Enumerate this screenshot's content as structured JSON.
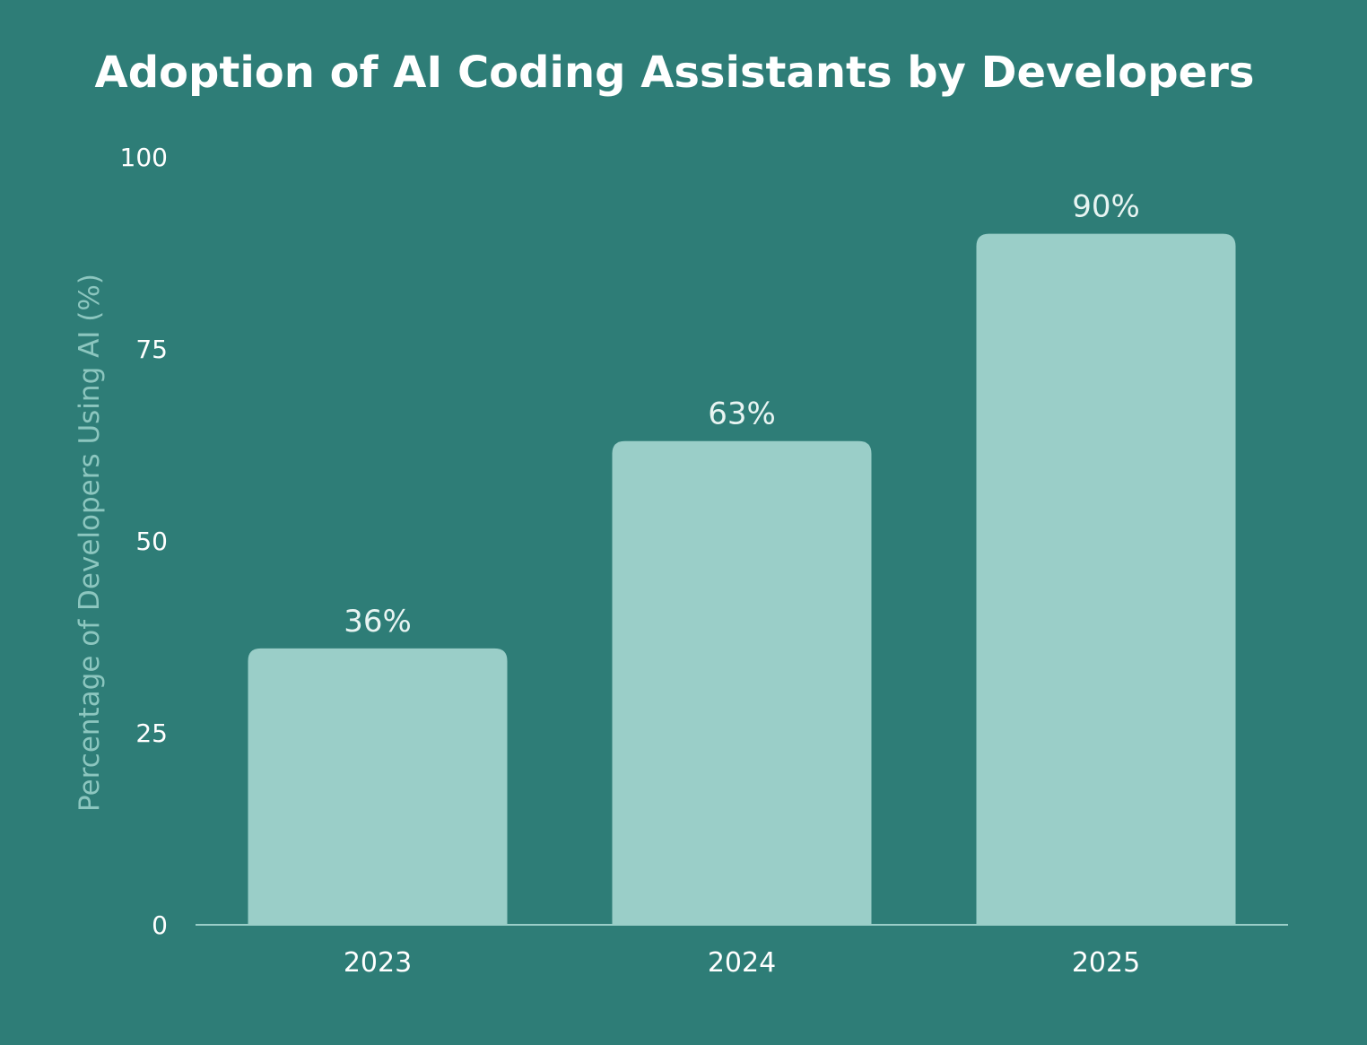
{
  "chart_data": {
    "type": "bar",
    "title": "Adoption of AI Coding Assistants by Developers",
    "xlabel": "",
    "ylabel": "Percentage of Developers Using AI (%)",
    "categories": [
      "2023",
      "2024",
      "2025"
    ],
    "values": [
      36,
      63,
      90
    ],
    "value_labels": [
      "36%",
      "63%",
      "90%"
    ],
    "ylim": [
      0,
      100
    ],
    "yticks": [
      0,
      25,
      50,
      75,
      100
    ],
    "ytick_labels": [
      "0",
      "25",
      "50",
      "75",
      "100"
    ],
    "grid": false,
    "legend": "none"
  },
  "colors": {
    "background": "#2e7d77",
    "bar": "#9acec8",
    "axis_line": "#9acec8",
    "title": "#ffffff",
    "tick_text": "#ffffff",
    "value_label_text": "#e8f4f2",
    "ylabel_text": "#8cc6bf"
  }
}
